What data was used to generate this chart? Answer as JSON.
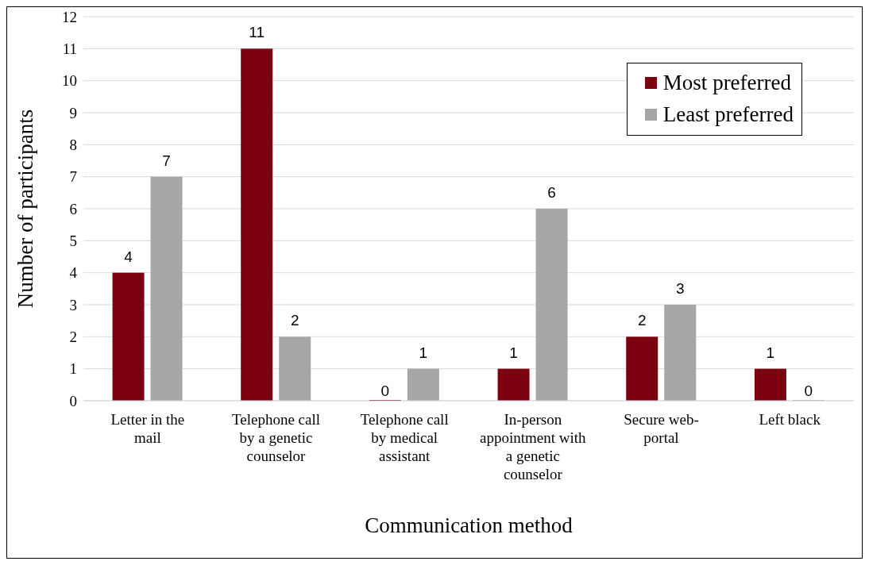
{
  "chart_data": {
    "type": "bar",
    "xlabel": "Communication method",
    "ylabel": "Number of participants",
    "categories": [
      "Letter in the mail",
      "Telephone call by a genetic counselor",
      "Telephone call by medical assistant",
      "In-person appointment with a genetic counselor",
      "Secure web-portal",
      "Left black"
    ],
    "series": [
      {
        "name": "Most preferred",
        "color": "#7b0010",
        "values": [
          4,
          11,
          0,
          1,
          2,
          1
        ]
      },
      {
        "name": "Least preferred",
        "color": "#a6a6a6",
        "values": [
          7,
          2,
          1,
          6,
          3,
          0
        ]
      }
    ],
    "ylim": [
      0,
      12
    ],
    "yticks": [
      0,
      1,
      2,
      3,
      4,
      5,
      6,
      7,
      8,
      9,
      10,
      11,
      12
    ],
    "grid": "y",
    "legend": "top right",
    "data_labels": true
  }
}
